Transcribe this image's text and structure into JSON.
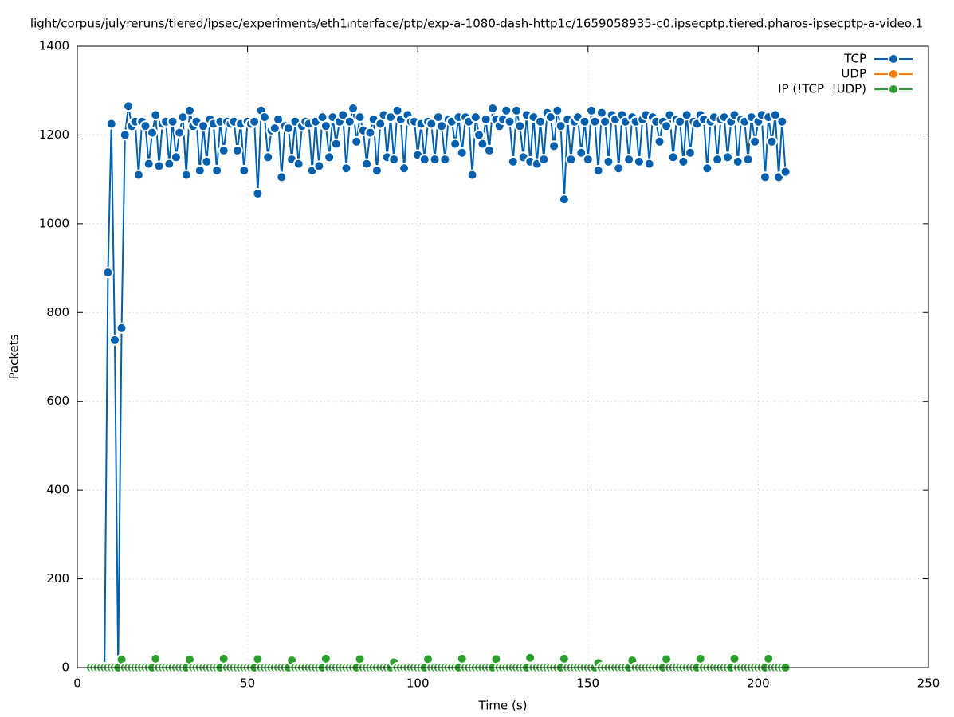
{
  "chart_data": {
    "type": "line",
    "title": "light/corpus/julyreruns/tiered/ipsec/experiment₃/eth1ᵢnterface/ptp/exp-a-1080-dash-http1c/1659058935-c0.ipsecptp.tiered.pharos-ipsecptp-a-video.1",
    "x_label": "Time (s)",
    "y_label": "Packets",
    "x": [
      4,
      5,
      6,
      7,
      8,
      9,
      10,
      11,
      12,
      13,
      14,
      15,
      16,
      17,
      18,
      19,
      20,
      21,
      22,
      23,
      24,
      25,
      26,
      27,
      28,
      29,
      30,
      31,
      32,
      33,
      34,
      35,
      36,
      37,
      38,
      39,
      40,
      41,
      42,
      43,
      44,
      45,
      46,
      47,
      48,
      49,
      50,
      51,
      52,
      53,
      54,
      55,
      56,
      57,
      58,
      59,
      60,
      61,
      62,
      63,
      64,
      65,
      66,
      67,
      68,
      69,
      70,
      71,
      72,
      73,
      74,
      75,
      76,
      77,
      78,
      79,
      80,
      81,
      82,
      83,
      84,
      85,
      86,
      87,
      88,
      89,
      90,
      91,
      92,
      93,
      94,
      95,
      96,
      97,
      98,
      99,
      100,
      101,
      102,
      103,
      104,
      105,
      106,
      107,
      108,
      109,
      110,
      111,
      112,
      113,
      114,
      115,
      116,
      117,
      118,
      119,
      120,
      121,
      122,
      123,
      124,
      125,
      126,
      127,
      128,
      129,
      130,
      131,
      132,
      133,
      134,
      135,
      136,
      137,
      138,
      139,
      140,
      141,
      142,
      143,
      144,
      145,
      146,
      147,
      148,
      149,
      150,
      151,
      152,
      153,
      154,
      155,
      156,
      157,
      158,
      159,
      160,
      161,
      162,
      163,
      164,
      165,
      166,
      167,
      168,
      169,
      170,
      171,
      172,
      173,
      174,
      175,
      176,
      177,
      178,
      179,
      180,
      181,
      182,
      183,
      184,
      185,
      186,
      187,
      188,
      189,
      190,
      191,
      192,
      193,
      194,
      195,
      196,
      197,
      198,
      199,
      200,
      201,
      202,
      203,
      204,
      205,
      206,
      207,
      208
    ],
    "series": [
      {
        "name": "TCP",
        "color": "#0060ad",
        "values": [
          0,
          0,
          0,
          0,
          0,
          890,
          1225,
          738,
          5,
          765,
          1200,
          1265,
          1220,
          1230,
          1110,
          1230,
          1220,
          1135,
          1205,
          1245,
          1130,
          1225,
          1230,
          1135,
          1230,
          1150,
          1205,
          1240,
          1110,
          1255,
          1220,
          1230,
          1120,
          1220,
          1140,
          1235,
          1225,
          1120,
          1230,
          1165,
          1230,
          1225,
          1230,
          1165,
          1225,
          1120,
          1230,
          1225,
          1230,
          1068,
          1255,
          1240,
          1150,
          1210,
          1215,
          1235,
          1105,
          1220,
          1215,
          1145,
          1230,
          1135,
          1220,
          1230,
          1225,
          1120,
          1230,
          1130,
          1240,
          1220,
          1150,
          1240,
          1180,
          1230,
          1245,
          1125,
          1230,
          1260,
          1185,
          1240,
          1210,
          1135,
          1205,
          1235,
          1120,
          1225,
          1245,
          1150,
          1240,
          1145,
          1255,
          1235,
          1125,
          1245,
          1230,
          1230,
          1155,
          1225,
          1145,
          1230,
          1225,
          1145,
          1240,
          1220,
          1145,
          1235,
          1230,
          1180,
          1240,
          1160,
          1240,
          1230,
          1110,
          1240,
          1200,
          1180,
          1235,
          1165,
          1260,
          1235,
          1220,
          1235,
          1255,
          1230,
          1140,
          1255,
          1220,
          1150,
          1245,
          1140,
          1240,
          1135,
          1230,
          1145,
          1250,
          1240,
          1175,
          1255,
          1220,
          1055,
          1235,
          1145,
          1230,
          1240,
          1160,
          1230,
          1145,
          1255,
          1230,
          1120,
          1250,
          1230,
          1140,
          1245,
          1235,
          1125,
          1245,
          1230,
          1145,
          1240,
          1230,
          1140,
          1235,
          1245,
          1135,
          1240,
          1230,
          1185,
          1230,
          1220,
          1245,
          1150,
          1235,
          1230,
          1140,
          1245,
          1160,
          1230,
          1225,
          1245,
          1235,
          1125,
          1230,
          1240,
          1145,
          1235,
          1240,
          1150,
          1230,
          1245,
          1140,
          1235,
          1230,
          1145,
          1240,
          1185,
          1230,
          1245,
          1105,
          1240,
          1185,
          1245,
          1105,
          1230,
          1117
        ]
      },
      {
        "name": "UDP",
        "color": "#ff7f0e",
        "values": [
          0,
          0,
          0,
          0,
          0,
          0,
          0,
          0,
          0,
          0,
          0,
          0,
          0,
          0,
          0,
          0,
          0,
          0,
          0,
          0,
          0,
          0,
          0,
          0,
          0,
          0,
          0,
          0,
          0,
          0,
          0,
          0,
          0,
          0,
          0,
          0,
          0,
          0,
          0,
          0,
          0,
          0,
          0,
          0,
          0,
          0,
          0,
          0,
          0,
          0,
          0,
          0,
          0,
          0,
          0,
          0,
          0,
          0,
          0,
          0,
          0,
          0,
          0,
          0,
          0,
          0,
          0,
          0,
          0,
          0,
          0,
          0,
          0,
          0,
          0,
          0,
          0,
          0,
          0,
          0,
          0,
          0,
          0,
          0,
          0,
          0,
          0,
          0,
          0,
          0,
          0,
          0,
          0,
          0,
          0,
          0,
          0,
          0,
          0,
          0,
          0,
          0,
          0,
          0,
          0,
          0,
          0,
          0,
          0,
          0,
          0,
          0,
          0,
          0,
          0,
          0,
          0,
          0,
          0,
          0,
          0,
          0,
          0,
          0,
          0,
          0,
          0,
          0,
          0,
          0,
          0,
          0,
          0,
          0,
          0,
          0,
          0,
          0,
          0,
          0,
          0,
          0,
          0,
          0,
          0,
          0,
          0,
          0,
          0,
          0,
          0,
          0,
          0,
          0,
          0,
          0,
          0,
          0,
          0,
          0,
          0,
          0,
          0,
          0,
          0,
          0,
          0,
          0,
          0,
          0,
          0,
          0,
          0,
          0,
          0,
          0,
          0,
          0,
          0,
          0,
          0,
          0,
          0,
          0,
          0,
          0,
          0,
          0,
          0,
          0,
          0,
          0,
          0,
          0,
          0,
          0,
          0,
          0,
          0,
          0,
          0,
          0,
          0,
          0,
          0
        ]
      },
      {
        "name": "IP (!TCP  !UDP)",
        "color": "#2ca02c",
        "values": [
          0,
          0,
          0,
          0,
          0,
          0,
          0,
          0,
          0,
          18,
          0,
          0,
          0,
          0,
          0,
          0,
          0,
          0,
          0,
          20,
          0,
          0,
          0,
          0,
          0,
          0,
          0,
          0,
          0,
          18,
          0,
          0,
          0,
          0,
          0,
          0,
          0,
          0,
          0,
          20,
          0,
          0,
          0,
          0,
          0,
          0,
          0,
          0,
          0,
          19,
          0,
          0,
          0,
          0,
          0,
          0,
          0,
          0,
          0,
          16,
          0,
          0,
          0,
          0,
          0,
          0,
          0,
          0,
          0,
          20,
          0,
          0,
          0,
          0,
          0,
          0,
          0,
          0,
          0,
          19,
          0,
          0,
          0,
          0,
          0,
          0,
          0,
          0,
          0,
          12,
          0,
          0,
          0,
          0,
          0,
          0,
          0,
          0,
          0,
          19,
          0,
          0,
          0,
          0,
          0,
          0,
          0,
          0,
          0,
          20,
          0,
          0,
          0,
          0,
          0,
          0,
          0,
          0,
          0,
          19,
          0,
          0,
          0,
          0,
          0,
          0,
          0,
          0,
          0,
          22,
          0,
          0,
          0,
          0,
          0,
          0,
          0,
          0,
          0,
          20,
          0,
          0,
          0,
          0,
          0,
          0,
          0,
          0,
          0,
          10,
          0,
          0,
          0,
          0,
          0,
          0,
          0,
          0,
          0,
          16,
          0,
          0,
          0,
          0,
          0,
          0,
          0,
          0,
          0,
          19,
          0,
          0,
          0,
          0,
          0,
          0,
          0,
          0,
          0,
          20,
          0,
          0,
          0,
          0,
          0,
          0,
          0,
          0,
          0,
          20,
          0,
          0,
          0,
          0,
          0,
          0,
          0,
          0,
          0,
          20,
          0,
          0,
          0,
          0,
          0
        ]
      }
    ],
    "xlim": [
      0,
      250
    ],
    "xticks": [
      0,
      50,
      100,
      150,
      200,
      250
    ],
    "ylim": [
      0,
      1400
    ],
    "yticks": [
      0,
      200,
      400,
      600,
      800,
      1000,
      1200,
      1400
    ],
    "grid": true,
    "legend": "top-right"
  }
}
